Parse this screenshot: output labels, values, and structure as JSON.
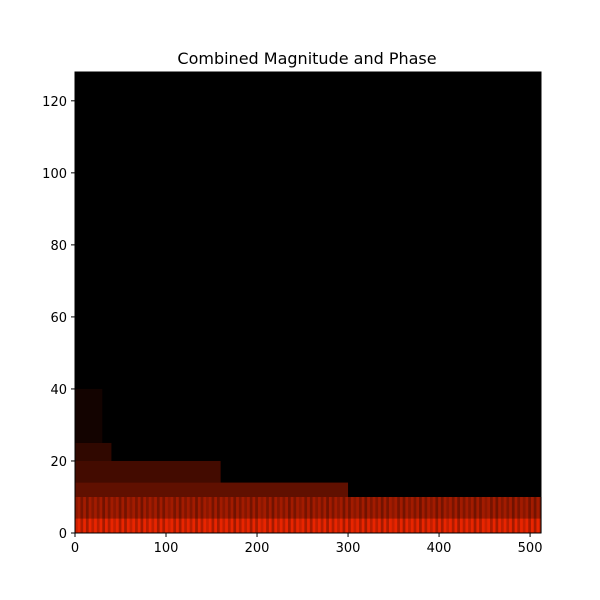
{
  "chart_data": {
    "type": "heatmap",
    "title": "Combined Magnitude and Phase",
    "xlabel": "",
    "ylabel": "",
    "xlim": [
      0,
      512
    ],
    "ylim": [
      0,
      128
    ],
    "x_ticks": [
      0,
      100,
      200,
      300,
      400,
      500
    ],
    "y_ticks": [
      0,
      20,
      40,
      60,
      80,
      100,
      120
    ],
    "colormap": "black-to-red (hot)",
    "colors": {
      "low": "#000000",
      "high": "#ff2a00",
      "frame": "#000000"
    },
    "grid": false,
    "intensity_bands": [
      {
        "y_range": [
          0,
          10
        ],
        "x_range": [
          0,
          512
        ],
        "intensity": 0.85
      },
      {
        "y_range": [
          0,
          4
        ],
        "x_range": [
          0,
          512
        ],
        "intensity": 1.0
      },
      {
        "y_range": [
          10,
          14
        ],
        "x_range": [
          0,
          300
        ],
        "intensity": 0.5
      },
      {
        "y_range": [
          14,
          20
        ],
        "x_range": [
          0,
          160
        ],
        "intensity": 0.35
      },
      {
        "y_range": [
          20,
          25
        ],
        "x_range": [
          0,
          40
        ],
        "intensity": 0.25
      },
      {
        "y_range": [
          25,
          40
        ],
        "x_range": [
          0,
          30
        ],
        "intensity": 0.1
      },
      {
        "y_range": [
          40,
          128
        ],
        "x_range": [
          0,
          512
        ],
        "intensity": 0.0
      }
    ]
  }
}
